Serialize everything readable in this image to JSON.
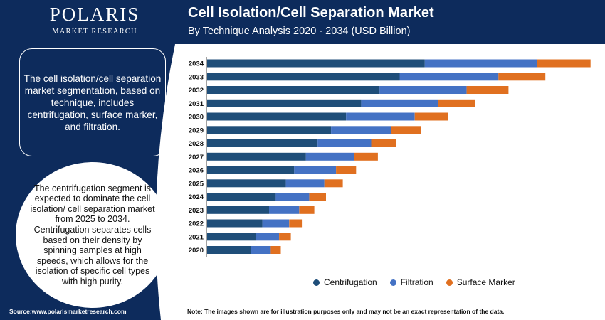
{
  "brand": {
    "name": "POLARIS",
    "tagline": "MARKET RESEARCH"
  },
  "header": {
    "title": "Cell Isolation/Cell Separation Market",
    "subtitle": "By Technique Analysis 2020 - 2034 (USD Billion)"
  },
  "info_box": {
    "text": "The cell isolation/cell separation market segmentation, based on technique, includes centrifugation, surface marker, and filtration."
  },
  "highlight": {
    "text": "The centrifugation segment is expected to dominate the cell isolation/ cell separation market from 2025 to 2034. Centrifugation separates cells based on their density by spinning samples at high speeds, which allows for the isolation of specific cell types with high purity."
  },
  "colors": {
    "navy": "#0d2b5c",
    "centrifugation": "#1f4e79",
    "filtration": "#4472c4",
    "surface_marker": "#e07020"
  },
  "chart_data": {
    "type": "bar",
    "orientation": "horizontal",
    "stacked": true,
    "categories": [
      "2020",
      "2021",
      "2022",
      "2023",
      "2024",
      "2025",
      "2026",
      "2027",
      "2028",
      "2029",
      "2030",
      "2031",
      "2032",
      "2033",
      "2034"
    ],
    "series": [
      {
        "name": "Centrifugation",
        "color": "#1f4e79",
        "values": [
          2.6,
          2.9,
          3.3,
          3.7,
          4.1,
          4.7,
          5.2,
          5.9,
          6.6,
          7.4,
          8.3,
          9.2,
          10.3,
          11.5,
          13.0
        ]
      },
      {
        "name": "Filtration",
        "color": "#4472c4",
        "values": [
          1.2,
          1.4,
          1.6,
          1.8,
          2.0,
          2.3,
          2.5,
          2.9,
          3.2,
          3.6,
          4.1,
          4.6,
          5.2,
          5.9,
          6.7
        ]
      },
      {
        "name": "Surface Marker",
        "color": "#e07020",
        "values": [
          0.6,
          0.7,
          0.8,
          0.9,
          1.0,
          1.1,
          1.2,
          1.4,
          1.5,
          1.8,
          2.0,
          2.2,
          2.5,
          2.8,
          3.2
        ]
      }
    ],
    "title": "Cell Isolation/Cell Separation Market",
    "subtitle": "By Technique Analysis 2020 - 2034 (USD Billion)",
    "xlabel": "",
    "ylabel": "",
    "xlim": [
      0,
      23
    ],
    "grid": false,
    "legend": "bottom"
  },
  "footer": {
    "source": "Source:www.polarismarketresearch.com",
    "note": "Note: The images shown are for illustration purposes only and may not be an exact representation of the data."
  }
}
